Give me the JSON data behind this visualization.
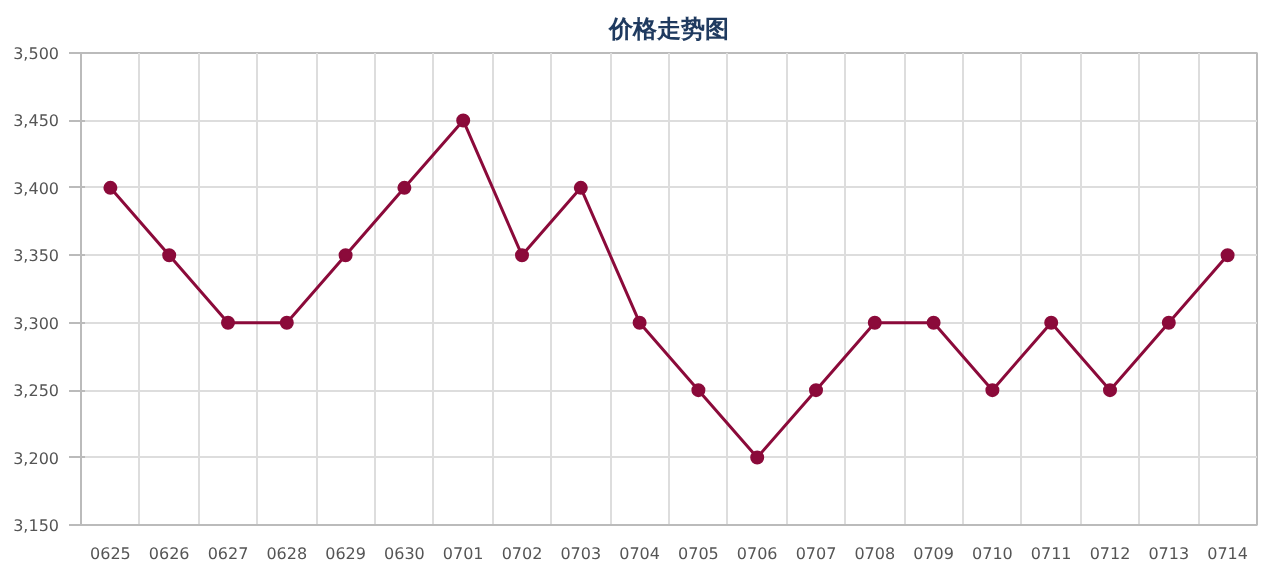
{
  "chart_data": {
    "type": "line",
    "title": "价格走势图",
    "categories": [
      "0625",
      "0626",
      "0627",
      "0628",
      "0629",
      "0630",
      "0701",
      "0702",
      "0703",
      "0704",
      "0705",
      "0706",
      "0707",
      "0708",
      "0709",
      "0710",
      "0711",
      "0712",
      "0713",
      "0714"
    ],
    "series": [
      {
        "color": "#8b0a3a",
        "values": [
          3400,
          3350,
          3300,
          3300,
          3350,
          3400,
          3450,
          3350,
          3400,
          3300,
          3250,
          3200,
          3250,
          3300,
          3300,
          3250,
          3300,
          3250,
          3300,
          3350
        ]
      }
    ],
    "ylim": [
      3150,
      3500
    ],
    "yticks": [
      {
        "value": 3150,
        "label": "3,150"
      },
      {
        "value": 3200,
        "label": "3,200"
      },
      {
        "value": 3250,
        "label": "3,250"
      },
      {
        "value": 3300,
        "label": "3,300"
      },
      {
        "value": 3350,
        "label": "3,350"
      },
      {
        "value": 3400,
        "label": "3,400"
      },
      {
        "value": 3450,
        "label": "3,450"
      },
      {
        "value": 3500,
        "label": "3,500"
      }
    ],
    "grid": true,
    "marker": "circle",
    "line_style": "solid"
  }
}
